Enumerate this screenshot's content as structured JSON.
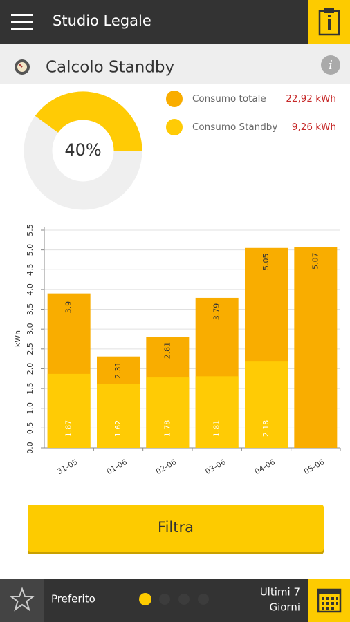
{
  "header": {
    "title": "Studio Legale"
  },
  "section": {
    "title": "Calcolo Standby"
  },
  "chart_data": [
    {
      "type": "pie",
      "values": [
        40
      ],
      "value_labels": [
        "40%"
      ],
      "color": "#ffcb05",
      "rest_color": "#efefef",
      "legend": [
        {
          "name": "Consumo totale",
          "amount": "22,92 kWh",
          "color": "#f9ad00"
        },
        {
          "name": "Consumo Standby",
          "amount": "9,26 kWh",
          "color": "#ffcb05"
        }
      ]
    },
    {
      "type": "bar",
      "y_label": "kWh",
      "categories": [
        "31-05",
        "01-06",
        "02-06",
        "03-06",
        "04-06",
        "05-06"
      ],
      "series": [
        {
          "name": "Consumo totale",
          "color": "#f9ad00",
          "values": [
            3.9,
            2.31,
            2.81,
            3.79,
            5.05,
            5.07
          ]
        },
        {
          "name": "Consumo Standby",
          "color": "#ffcb05",
          "values": [
            1.87,
            1.62,
            1.78,
            1.81,
            2.18,
            null
          ]
        }
      ],
      "ylim": [
        0,
        5.5
      ],
      "yticks": [
        {
          "value": 0,
          "label": "0.0"
        },
        0.5,
        {
          "value": 1,
          "label": "1.0"
        },
        1.5,
        {
          "value": 2,
          "label": "2.0"
        },
        2.5,
        {
          "value": 3,
          "label": "3.0"
        },
        3.5,
        {
          "value": 4,
          "label": "4.0"
        },
        4.5,
        {
          "value": 5,
          "label": "5.0"
        },
        5.5
      ],
      "grid": true
    }
  ],
  "button": {
    "label": "Filtra"
  },
  "footer": {
    "favorite": "Preferito",
    "period": [
      "Ultimi 7",
      "Giorni"
    ]
  }
}
